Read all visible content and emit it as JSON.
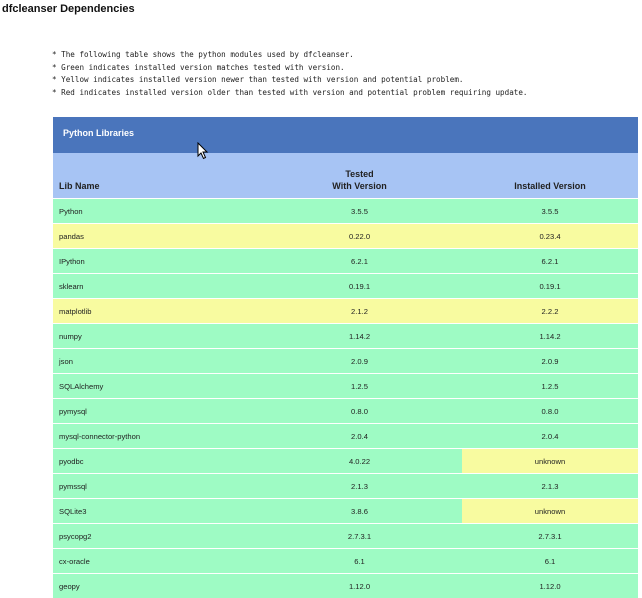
{
  "page": {
    "title": "dfcleanser Dependencies"
  },
  "notes": [
    "The following table shows the python modules used by dfcleanser.",
    "Green indicates installed version matches tested with version.",
    "Yellow indicates installed version newer than tested with version and potential problem.",
    "Red indicates installed version older than tested with version and potential problem requiring update."
  ],
  "table": {
    "title": "Python Libraries",
    "headers": {
      "lib": "Lib Name",
      "tested_line1": "Tested",
      "tested_line2": "With Version",
      "installed": "Installed Version"
    },
    "rows": [
      {
        "lib": "Python",
        "tested": "3.5.5",
        "installed": "3.5.5",
        "lib_color": "#9efbc4",
        "tested_color": "#9efbc4",
        "installed_color": "#9efbc4"
      },
      {
        "lib": "pandas",
        "tested": "0.22.0",
        "installed": "0.23.4",
        "lib_color": "#f8fba0",
        "tested_color": "#f8fba0",
        "installed_color": "#f8fba0"
      },
      {
        "lib": "IPython",
        "tested": "6.2.1",
        "installed": "6.2.1",
        "lib_color": "#9efbc4",
        "tested_color": "#9efbc4",
        "installed_color": "#9efbc4"
      },
      {
        "lib": "sklearn",
        "tested": "0.19.1",
        "installed": "0.19.1",
        "lib_color": "#9efbc4",
        "tested_color": "#9efbc4",
        "installed_color": "#9efbc4"
      },
      {
        "lib": "matplotlib",
        "tested": "2.1.2",
        "installed": "2.2.2",
        "lib_color": "#f8fba0",
        "tested_color": "#f8fba0",
        "installed_color": "#f8fba0"
      },
      {
        "lib": "numpy",
        "tested": "1.14.2",
        "installed": "1.14.2",
        "lib_color": "#9efbc4",
        "tested_color": "#9efbc4",
        "installed_color": "#9efbc4"
      },
      {
        "lib": "json",
        "tested": "2.0.9",
        "installed": "2.0.9",
        "lib_color": "#9efbc4",
        "tested_color": "#9efbc4",
        "installed_color": "#9efbc4"
      },
      {
        "lib": "SQLAlchemy",
        "tested": "1.2.5",
        "installed": "1.2.5",
        "lib_color": "#9efbc4",
        "tested_color": "#9efbc4",
        "installed_color": "#9efbc4"
      },
      {
        "lib": "pymysql",
        "tested": "0.8.0",
        "installed": "0.8.0",
        "lib_color": "#9efbc4",
        "tested_color": "#9efbc4",
        "installed_color": "#9efbc4"
      },
      {
        "lib": "mysql-connector-python",
        "tested": "2.0.4",
        "installed": "2.0.4",
        "lib_color": "#9efbc4",
        "tested_color": "#9efbc4",
        "installed_color": "#9efbc4"
      },
      {
        "lib": "pyodbc",
        "tested": "4.0.22",
        "installed": "unknown",
        "lib_color": "#9efbc4",
        "tested_color": "#9efbc4",
        "installed_color": "#f8fba0"
      },
      {
        "lib": "pymssql",
        "tested": "2.1.3",
        "installed": "2.1.3",
        "lib_color": "#9efbc4",
        "tested_color": "#9efbc4",
        "installed_color": "#9efbc4"
      },
      {
        "lib": "SQLite3",
        "tested": "3.8.6",
        "installed": "unknown",
        "lib_color": "#9efbc4",
        "tested_color": "#9efbc4",
        "installed_color": "#f8fba0"
      },
      {
        "lib": "psycopg2",
        "tested": "2.7.3.1",
        "installed": "2.7.3.1",
        "lib_color": "#9efbc4",
        "tested_color": "#9efbc4",
        "installed_color": "#9efbc4"
      },
      {
        "lib": "cx-oracle",
        "tested": "6.1",
        "installed": "6.1",
        "lib_color": "#9efbc4",
        "tested_color": "#9efbc4",
        "installed_color": "#9efbc4"
      },
      {
        "lib": "geopy",
        "tested": "1.12.0",
        "installed": "1.12.0",
        "lib_color": "#9efbc4",
        "tested_color": "#9efbc4",
        "installed_color": "#9efbc4"
      }
    ]
  },
  "colors": {
    "header_bar": "#4a75bc",
    "column_header": "#a7c4f4",
    "match_green": "#9efbc4",
    "newer_yellow": "#f8fba0"
  },
  "icons": {
    "cursor": "mouse-pointer-icon"
  }
}
